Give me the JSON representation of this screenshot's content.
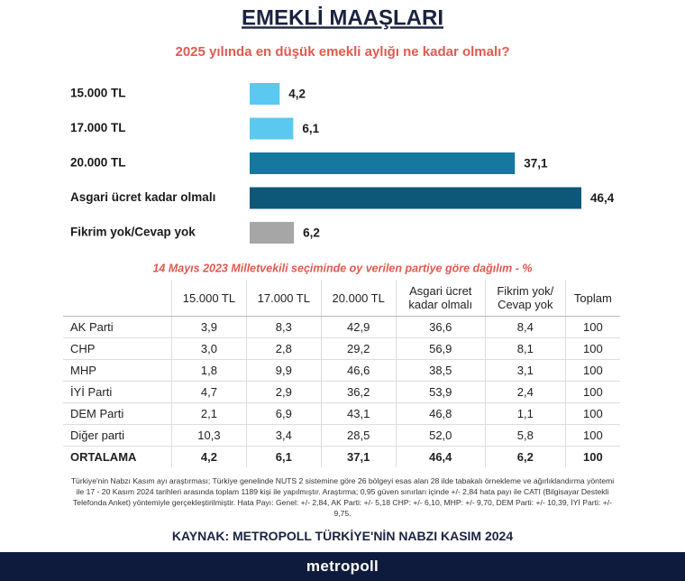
{
  "chart_data": {
    "type": "bar",
    "orientation": "horizontal",
    "title": "EMEKLİ MAAŞLARI",
    "subtitle": "2025 yılında en düşük emekli aylığı ne kadar olmalı?",
    "categories": [
      "15.000 TL",
      "17.000 TL",
      "20.000 TL",
      "Asgari ücret kadar olmalı",
      "Fikrim yok/Cevap yok"
    ],
    "values": [
      4.2,
      6.1,
      37.1,
      46.4,
      6.2
    ],
    "value_labels": [
      "4,2",
      "6,1",
      "37,1",
      "46,4",
      "6,2"
    ],
    "colors": [
      "#5bc8f0",
      "#5bc8f0",
      "#15799f",
      "#0d5878",
      "#a6a6a6"
    ]
  },
  "table": {
    "title": "14 Mayıs 2023 Milletvekili seçiminde oy verilen partiye göre dağılım - %",
    "header": [
      "15.000 TL",
      "17.000 TL",
      "20.000 TL",
      "Asgari ücret\nkadar olmalı",
      "Fikrim yok/\nCevap yok",
      "Toplam"
    ],
    "rows": [
      [
        "AK Parti",
        "3,9",
        "8,3",
        "42,9",
        "36,6",
        "8,4",
        "100"
      ],
      [
        "CHP",
        "3,0",
        "2,8",
        "29,2",
        "56,9",
        "8,1",
        "100"
      ],
      [
        "MHP",
        "1,8",
        "9,9",
        "46,6",
        "38,5",
        "3,1",
        "100"
      ],
      [
        "İYİ Parti",
        "4,7",
        "2,9",
        "36,2",
        "53,9",
        "2,4",
        "100"
      ],
      [
        "DEM Parti",
        "2,1",
        "6,9",
        "43,1",
        "46,8",
        "1,1",
        "100"
      ],
      [
        "Diğer parti",
        "10,3",
        "3,4",
        "28,5",
        "52,0",
        "5,8",
        "100"
      ],
      [
        "ORTALAMA",
        "4,2",
        "6,1",
        "37,1",
        "46,4",
        "6,2",
        "100"
      ]
    ]
  },
  "footnote": "Türkiye'nin Nabzı Kasım ayı araştırması; Türkiye genelinde NUTS 2 sistemine göre 26 bölgeyi esas alan 28 ilde tabakalı örnekleme ve ağırlıklandırma yöntemi ile 17 - 20 Kasım 2024 tarihleri arasında toplam 1189 kişi ile yapılmıştır. Araştırma; 0,95 güven sınırları içinde +/- 2,84 hata payı ile CATI (Bilgisayar Destekli Telefonda Anket) yöntemiyle gerçekleştirilmiştir. Hata Payı: Genel: +/- 2,84, AK Parti: +/- 5,18 CHP: +/- 6,10, MHP: +/- 9,70, DEM Parti: +/- 10,39, İYİ Parti: +/- 9,75.",
  "source": "KAYNAK: METROPOLL TÜRKİYE'NİN NABZI KASIM 2024",
  "logo": "metropoll"
}
